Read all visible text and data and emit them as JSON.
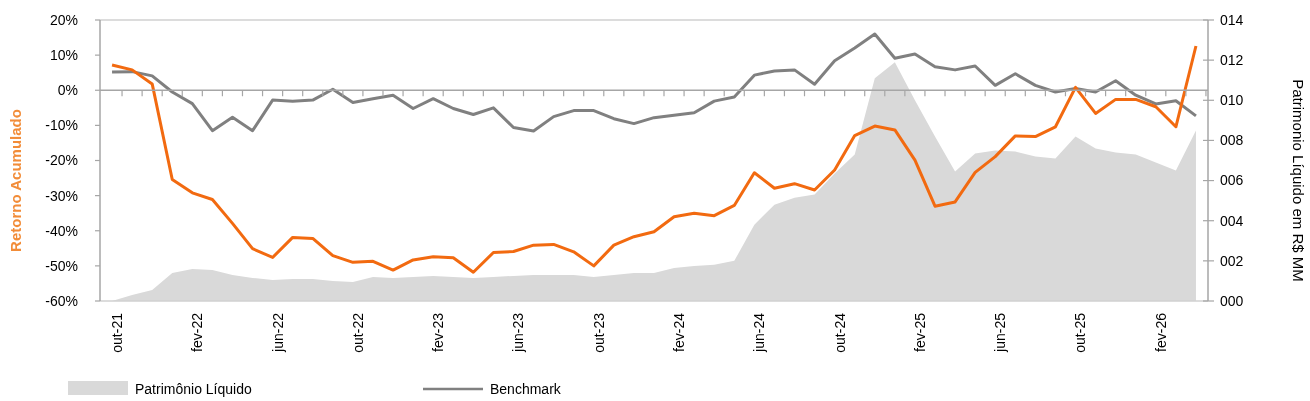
{
  "chart_data": {
    "type": "line",
    "ylabel": "Retorno Acumulado",
    "y2label": "Patrimonio Líquido em R$ MM",
    "categories": [
      "out-21",
      null,
      null,
      null,
      "fev-22",
      null,
      null,
      null,
      "jun-22",
      null,
      null,
      null,
      "out-22",
      null,
      null,
      null,
      "fev-23",
      null,
      null,
      null,
      "jun-23",
      null,
      null,
      null,
      "out-23",
      null,
      null,
      null,
      "fev-24",
      null,
      null,
      null,
      "jun-24",
      null,
      null,
      null,
      "out-24",
      null,
      null,
      null,
      "fev-25",
      null,
      null,
      null,
      "jun-25",
      null,
      null,
      null,
      "out-25",
      null,
      null,
      null,
      "fev-26",
      null,
      null
    ],
    "ylim": [
      -60,
      20
    ],
    "yticks": [
      {
        "value": -60,
        "label": "-60%"
      },
      {
        "value": -50,
        "label": "-50%"
      },
      {
        "value": -40,
        "label": "-40%"
      },
      {
        "value": -30,
        "label": "-30%"
      },
      {
        "value": -20,
        "label": "-20%"
      },
      {
        "value": -10,
        "label": "-10%"
      },
      {
        "value": 0,
        "label": "0%"
      },
      {
        "value": 10,
        "label": "10%"
      },
      {
        "value": 20,
        "label": "20%"
      }
    ],
    "y2lim": [
      0,
      14
    ],
    "y2ticks": [
      {
        "value": 0,
        "label": "000"
      },
      {
        "value": 2,
        "label": "002"
      },
      {
        "value": 4,
        "label": "004"
      },
      {
        "value": 6,
        "label": "006"
      },
      {
        "value": 8,
        "label": "008"
      },
      {
        "value": 10,
        "label": "010"
      },
      {
        "value": 12,
        "label": "012"
      },
      {
        "value": 14,
        "label": "014"
      }
    ],
    "legend": "bottom",
    "series": [
      {
        "name": "Patrimônio Líquido",
        "type": "area",
        "axis": "y2",
        "color": "#d9d9d9",
        "values": [
          0,
          0.3,
          0.55,
          1.4,
          1.6,
          1.55,
          1.3,
          1.15,
          1.05,
          1.1,
          1.1,
          1.0,
          0.95,
          1.2,
          1.15,
          1.2,
          1.25,
          1.2,
          1.15,
          1.2,
          1.25,
          1.3,
          1.3,
          1.3,
          1.2,
          1.3,
          1.4,
          1.4,
          1.65,
          1.75,
          1.8,
          2.0,
          3.8,
          4.8,
          5.15,
          5.3,
          6.35,
          7.3,
          11.1,
          11.9,
          10.0,
          8.2,
          6.45,
          7.35,
          7.5,
          7.45,
          7.2,
          7.1,
          8.2,
          7.6,
          7.4,
          7.3,
          6.9,
          6.5,
          8.5
        ]
      },
      {
        "name": "Benchmark",
        "color": "#808080",
        "values": [
          5.2,
          5.3,
          4.1,
          -0.5,
          -3.8,
          -11.5,
          -7.7,
          -11.5,
          -2.8,
          -3.1,
          -2.8,
          0.3,
          -3.5,
          -2.4,
          -1.4,
          -5.2,
          -2.4,
          -5.2,
          -6.9,
          -5.0,
          -10.6,
          -11.6,
          -7.5,
          -5.8,
          -5.8,
          -8.1,
          -9.5,
          -7.8,
          -7.1,
          -6.4,
          -3.1,
          -1.9,
          4.3,
          5.5,
          5.8,
          1.7,
          8.4,
          12.0,
          16.0,
          9.1,
          10.3,
          6.7,
          5.8,
          6.9,
          1.4,
          4.7,
          1.4,
          -0.5,
          0.5,
          -0.5,
          2.7,
          -1.4,
          -3.9,
          -3.0,
          -7.3
        ]
      },
      {
        "color": "#f26a10",
        "values": [
          7.2,
          5.8,
          1.8,
          -25.4,
          -29.2,
          -31.1,
          -37.9,
          -45.1,
          -47.6,
          -41.9,
          -42.2,
          -47.1,
          -49.0,
          -48.7,
          -51.2,
          -48.3,
          -47.4,
          -47.7,
          -51.8,
          -46.2,
          -45.9,
          -44.1,
          -43.9,
          -46.0,
          -50.0,
          -44.1,
          -41.7,
          -40.3,
          -36.0,
          -35.0,
          -35.7,
          -32.8,
          -23.5,
          -27.9,
          -26.6,
          -28.4,
          -22.7,
          -12.9,
          -10.2,
          -11.3,
          -19.9,
          -33.0,
          -31.8,
          -23.4,
          -18.9,
          -13.0,
          -13.2,
          -10.4,
          0.8,
          -6.6,
          -2.6,
          -2.6,
          -4.7,
          -10.4,
          12.6
        ]
      }
    ]
  }
}
